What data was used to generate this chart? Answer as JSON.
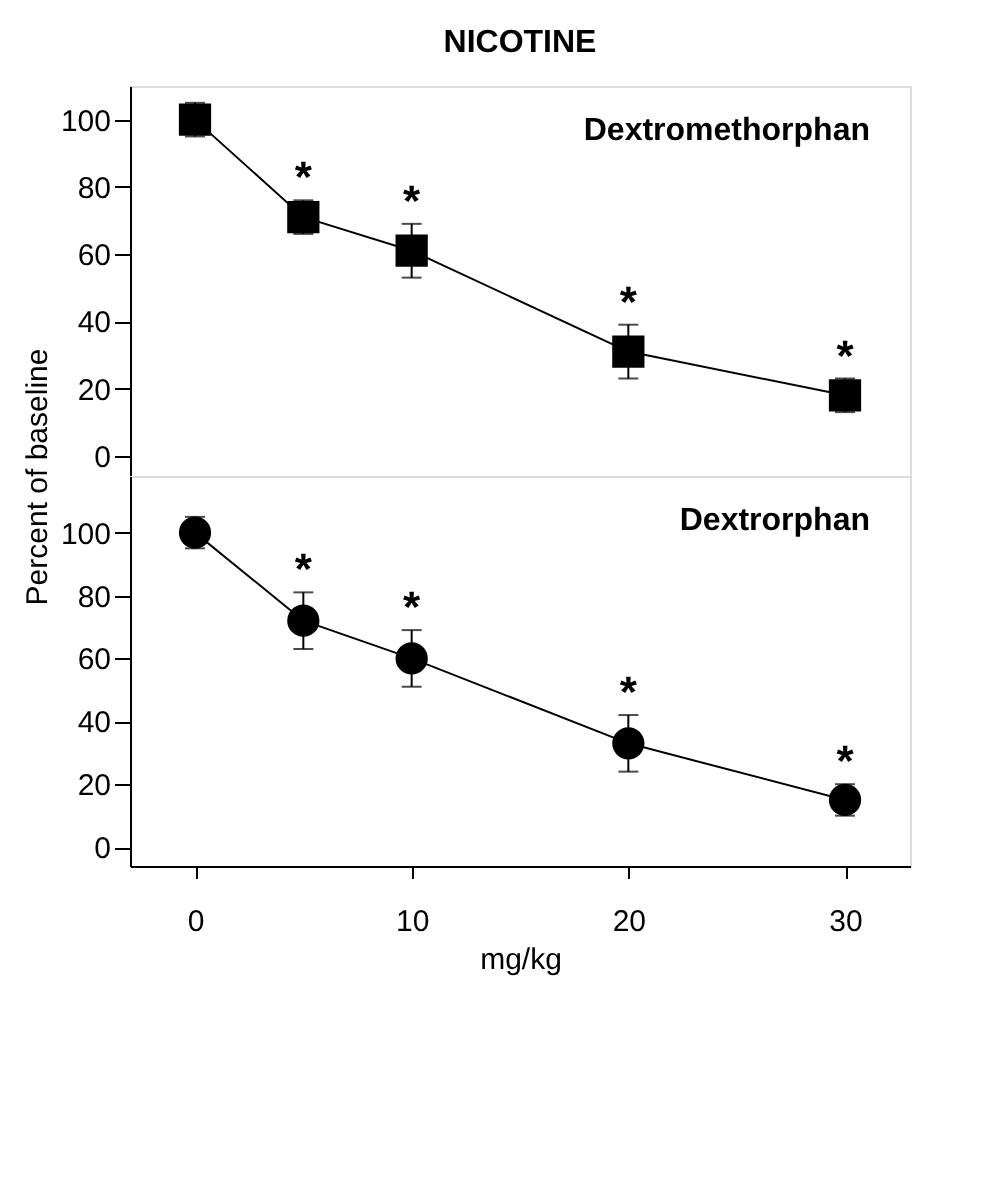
{
  "chart_data": [
    {
      "type": "line",
      "title": "NICOTINE",
      "ylabel": "Percent of baseline",
      "x": [
        0,
        5,
        10,
        20,
        30
      ],
      "xlim": [
        -3,
        33
      ],
      "xticks": [
        0,
        10,
        20,
        30
      ],
      "ylim": [
        -6,
        110
      ],
      "yticks": [
        0,
        20,
        40,
        60,
        80,
        100
      ],
      "tick_labels": "y",
      "marker": "square",
      "grid": false,
      "series": [
        {
          "name": "Dextromethorphan",
          "color": "#000000",
          "values": [
            100,
            71,
            61,
            31,
            18
          ],
          "errors": [
            5,
            5,
            8,
            8,
            5
          ]
        }
      ],
      "annotations": [
        {
          "text": "*",
          "x": 5,
          "y": 76
        },
        {
          "text": "*",
          "x": 10,
          "y": 69
        },
        {
          "text": "*",
          "x": 20,
          "y": 39
        },
        {
          "text": "*",
          "x": 30,
          "y": 23
        }
      ]
    },
    {
      "type": "line",
      "xlabel": "mg/kg",
      "x": [
        0,
        5,
        10,
        20,
        30
      ],
      "xlim": [
        -3,
        33
      ],
      "xticks": [
        0,
        10,
        20,
        30
      ],
      "ylim": [
        -6,
        118
      ],
      "yticks": [
        0,
        20,
        40,
        60,
        80,
        100
      ],
      "marker": "circle",
      "grid": false,
      "series": [
        {
          "name": "Dextrorphan",
          "color": "#000000",
          "values": [
            100,
            72,
            60,
            33,
            15
          ],
          "errors": [
            5,
            9,
            9,
            9,
            5
          ]
        }
      ],
      "annotations": [
        {
          "text": "*",
          "x": 5,
          "y": 81
        },
        {
          "text": "*",
          "x": 10,
          "y": 69
        },
        {
          "text": "*",
          "x": 20,
          "y": 42
        },
        {
          "text": "*",
          "x": 30,
          "y": 20
        }
      ]
    }
  ]
}
